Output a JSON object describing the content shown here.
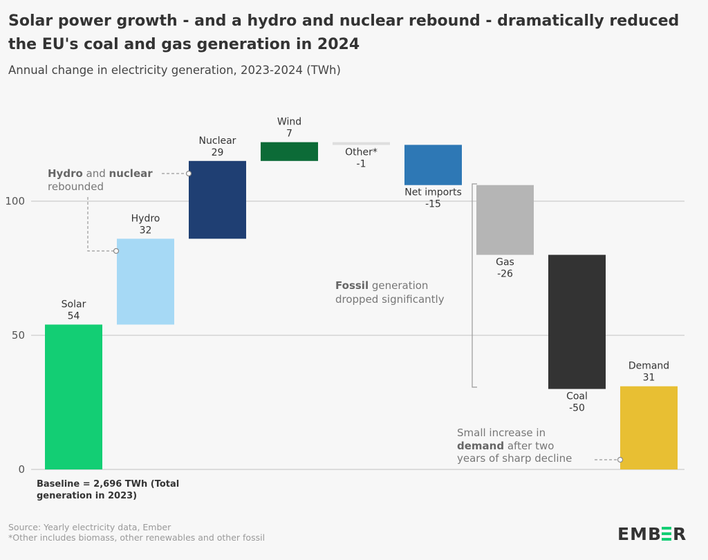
{
  "chart_data": {
    "type": "waterfall",
    "title_line1": "Solar power growth - and a hydro and nuclear rebound - dramatically reduced",
    "title_line2": "the EU's coal and gas generation in 2024",
    "subtitle": "Annual change in electricity generation, 2023-2024 (TWh)",
    "ylim": [
      0,
      130
    ],
    "yticks": [
      0,
      50,
      100
    ],
    "grid": true,
    "categories": [
      "Solar",
      "Hydro",
      "Nuclear",
      "Wind",
      "Other*",
      "Net imports",
      "Gas",
      "Coal",
      "Demand"
    ],
    "values": [
      54,
      32,
      29,
      7,
      -1,
      -15,
      -26,
      -50,
      31
    ],
    "value_labels": [
      "54",
      "32",
      "29",
      "7",
      "-1",
      "-15",
      "-26",
      "-50",
      "31"
    ],
    "colors": [
      "#13ce74",
      "#a6d9f5",
      "#1f3f73",
      "#0c6b37",
      "#dedede",
      "#2e78b5",
      "#b5b5b5",
      "#333333",
      "#e8bf33"
    ],
    "baseline_note_line1": "Baseline = 2,696 TWh (Total",
    "baseline_note_line2": "generation in 2023)",
    "annotations": {
      "hydro_nuclear": {
        "bold1": "Hydro",
        "mid": " and ",
        "bold2": "nuclear",
        "line2": "rebounded"
      },
      "fossil": {
        "bold": "Fossil",
        "rest": " generation",
        "line2": "dropped significantly"
      },
      "demand": {
        "line1": "Small increase in",
        "bold": "demand",
        "rest": " after two",
        "line3": "years of sharp decline"
      }
    }
  },
  "footer": {
    "source": "Source: Yearly electricity data, Ember",
    "note": "*Other includes biomass, other renewables and other fossil",
    "logo": "EMBER",
    "logo_accent": "#13ce74"
  }
}
